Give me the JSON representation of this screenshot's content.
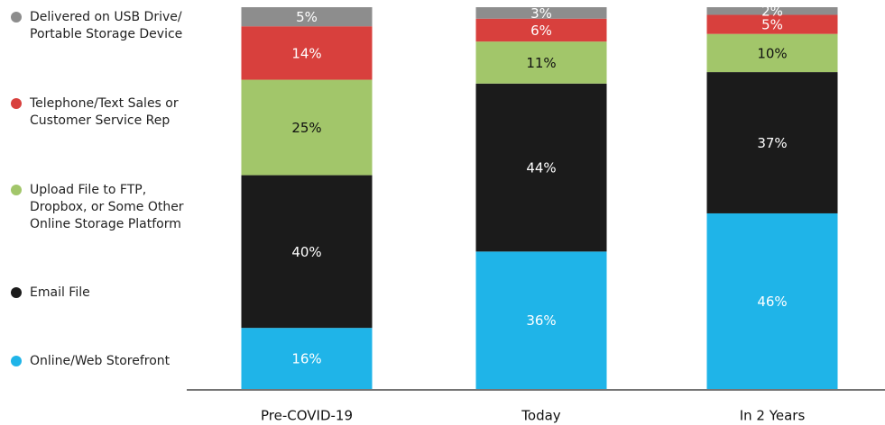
{
  "chart_data": {
    "type": "stacked_bar",
    "categories": [
      "Pre-COVID-19",
      "Today",
      "In 2 Years"
    ],
    "series": [
      {
        "name": "Online/Web Storefront",
        "color": "#1fb4e8",
        "values": [
          16,
          36,
          46
        ],
        "value_labels": [
          "16%",
          "36%",
          "46%"
        ]
      },
      {
        "name": "Email File",
        "color": "#1b1b1b",
        "values": [
          40,
          44,
          37
        ],
        "value_labels": [
          "40%",
          "44%",
          "37%"
        ]
      },
      {
        "name": "Upload File to FTP, Dropbox, or Some Other Online Storage Platform",
        "color": "#a2c66a",
        "values": [
          25,
          11,
          10
        ],
        "value_labels": [
          "25%",
          "11%",
          "10%"
        ]
      },
      {
        "name": "Telephone/Text Sales or Customer Service Rep",
        "color": "#d8403d",
        "values": [
          14,
          6,
          5
        ],
        "value_labels": [
          "14%",
          "6%",
          "5%"
        ]
      },
      {
        "name": "Delivered on USB Drive/ Portable Storage Device",
        "color": "#8d8d8d",
        "values": [
          5,
          3,
          2
        ],
        "value_labels": [
          "5%",
          "3%",
          "2%"
        ]
      }
    ],
    "legend": "left"
  }
}
